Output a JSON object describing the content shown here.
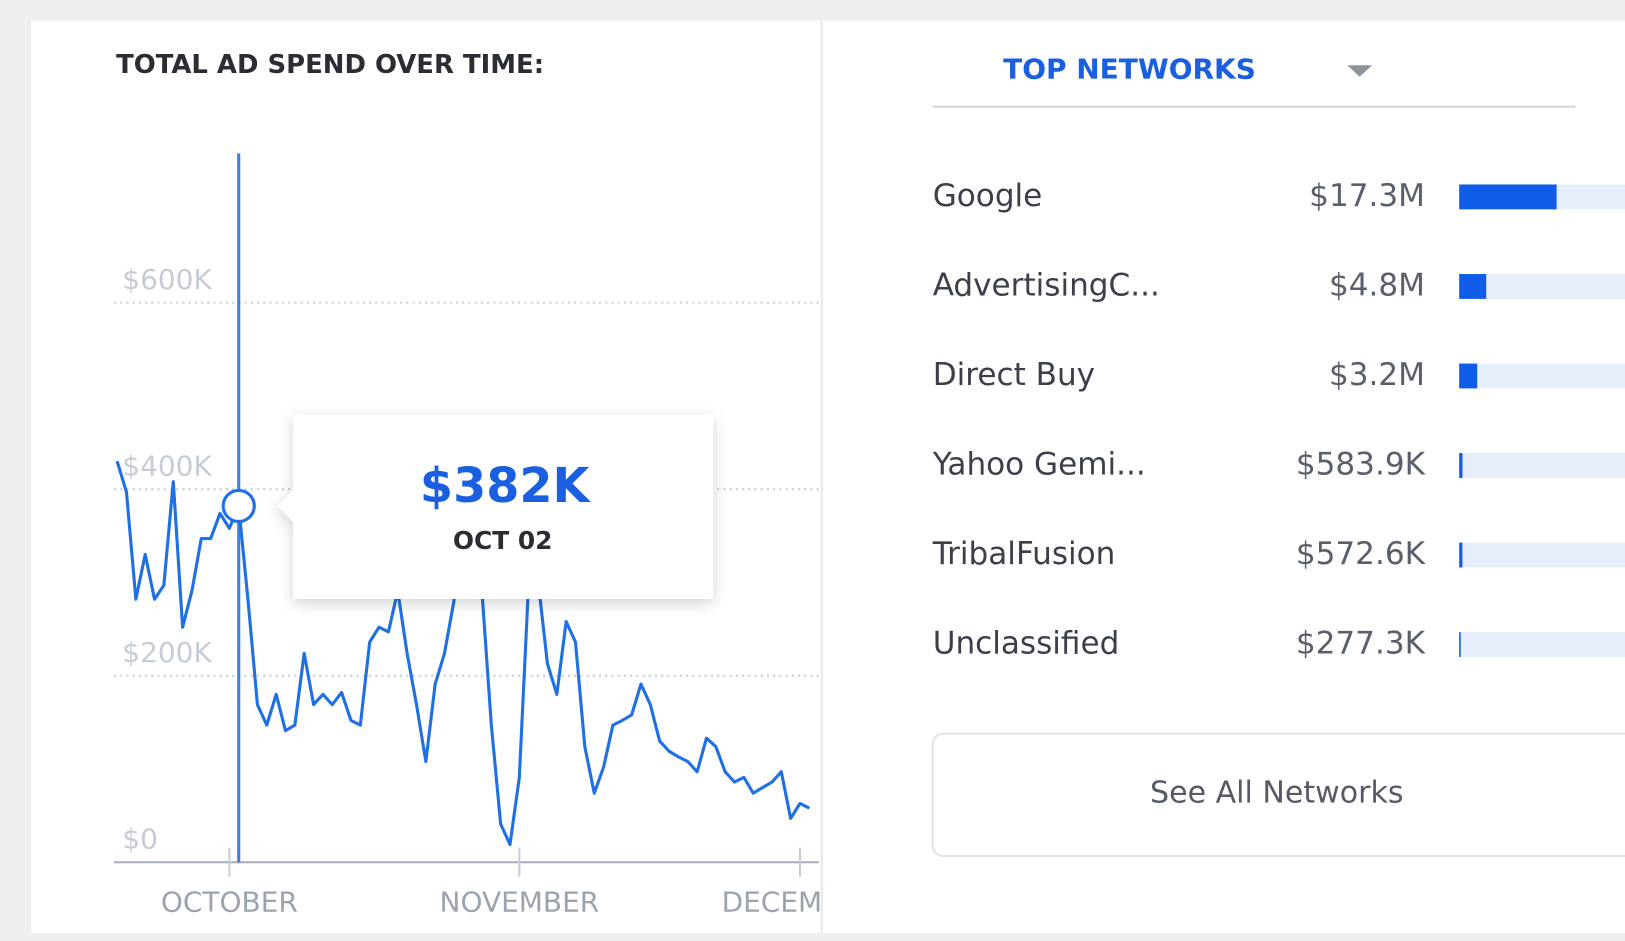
{
  "chart_data": [
    {
      "type": "line",
      "title": "TOTAL AD SPEND OVER TIME:",
      "color": "#1f6fe5",
      "values": [
        430,
        397,
        282,
        330,
        282,
        297,
        408,
        252,
        291,
        347,
        347,
        374,
        358,
        382,
        280,
        169,
        147,
        180,
        141,
        147,
        224,
        169,
        180,
        169,
        182,
        152,
        147,
        236,
        252,
        247,
        291,
        224,
        169,
        108,
        191,
        224,
        280,
        369,
        347,
        291,
        147,
        41,
        19,
        91,
        302,
        302,
        213,
        180,
        258,
        236,
        124,
        74,
        102,
        147,
        152,
        158,
        191,
        169,
        130,
        119,
        113,
        108,
        97,
        133,
        124,
        97,
        86,
        91,
        74,
        80,
        86,
        97,
        47,
        63,
        58
      ],
      "xlim": [
        0,
        75
      ],
      "xticks": [
        {
          "value": 12,
          "label": "OCTOBER"
        },
        {
          "value": 43,
          "label": "NOVEMBER"
        },
        {
          "value": 73,
          "label": "DECEMBER"
        }
      ],
      "ylim": [
        0,
        750
      ],
      "yticks": [
        {
          "value": 0,
          "label": "$0"
        },
        {
          "value": 200,
          "label": "$200K"
        },
        {
          "value": 400,
          "label": "$400K"
        },
        {
          "value": 600,
          "label": "$600K"
        }
      ],
      "grid": true,
      "tooltip": {
        "value": 382,
        "label": "$382K",
        "date": "OCT 02"
      }
    },
    {
      "type": "hbar",
      "title": "TOP NETWORKS",
      "color": "#0f5ce8",
      "track_color": "#e5eefa",
      "categories": [
        "Google",
        "AdvertisingC...",
        "Direct Buy",
        "Yahoo Gemi...",
        "TribalFusion",
        "Unclassified"
      ],
      "values": [
        17.3,
        4.8,
        3.2,
        0.5839,
        0.5726,
        0.2773
      ],
      "value_labels": [
        "$17.3M",
        "$4.8M",
        "$3.2M",
        "$583.9K",
        "$572.6K",
        "$277.3K"
      ]
    }
  ],
  "button": "See All Networks"
}
